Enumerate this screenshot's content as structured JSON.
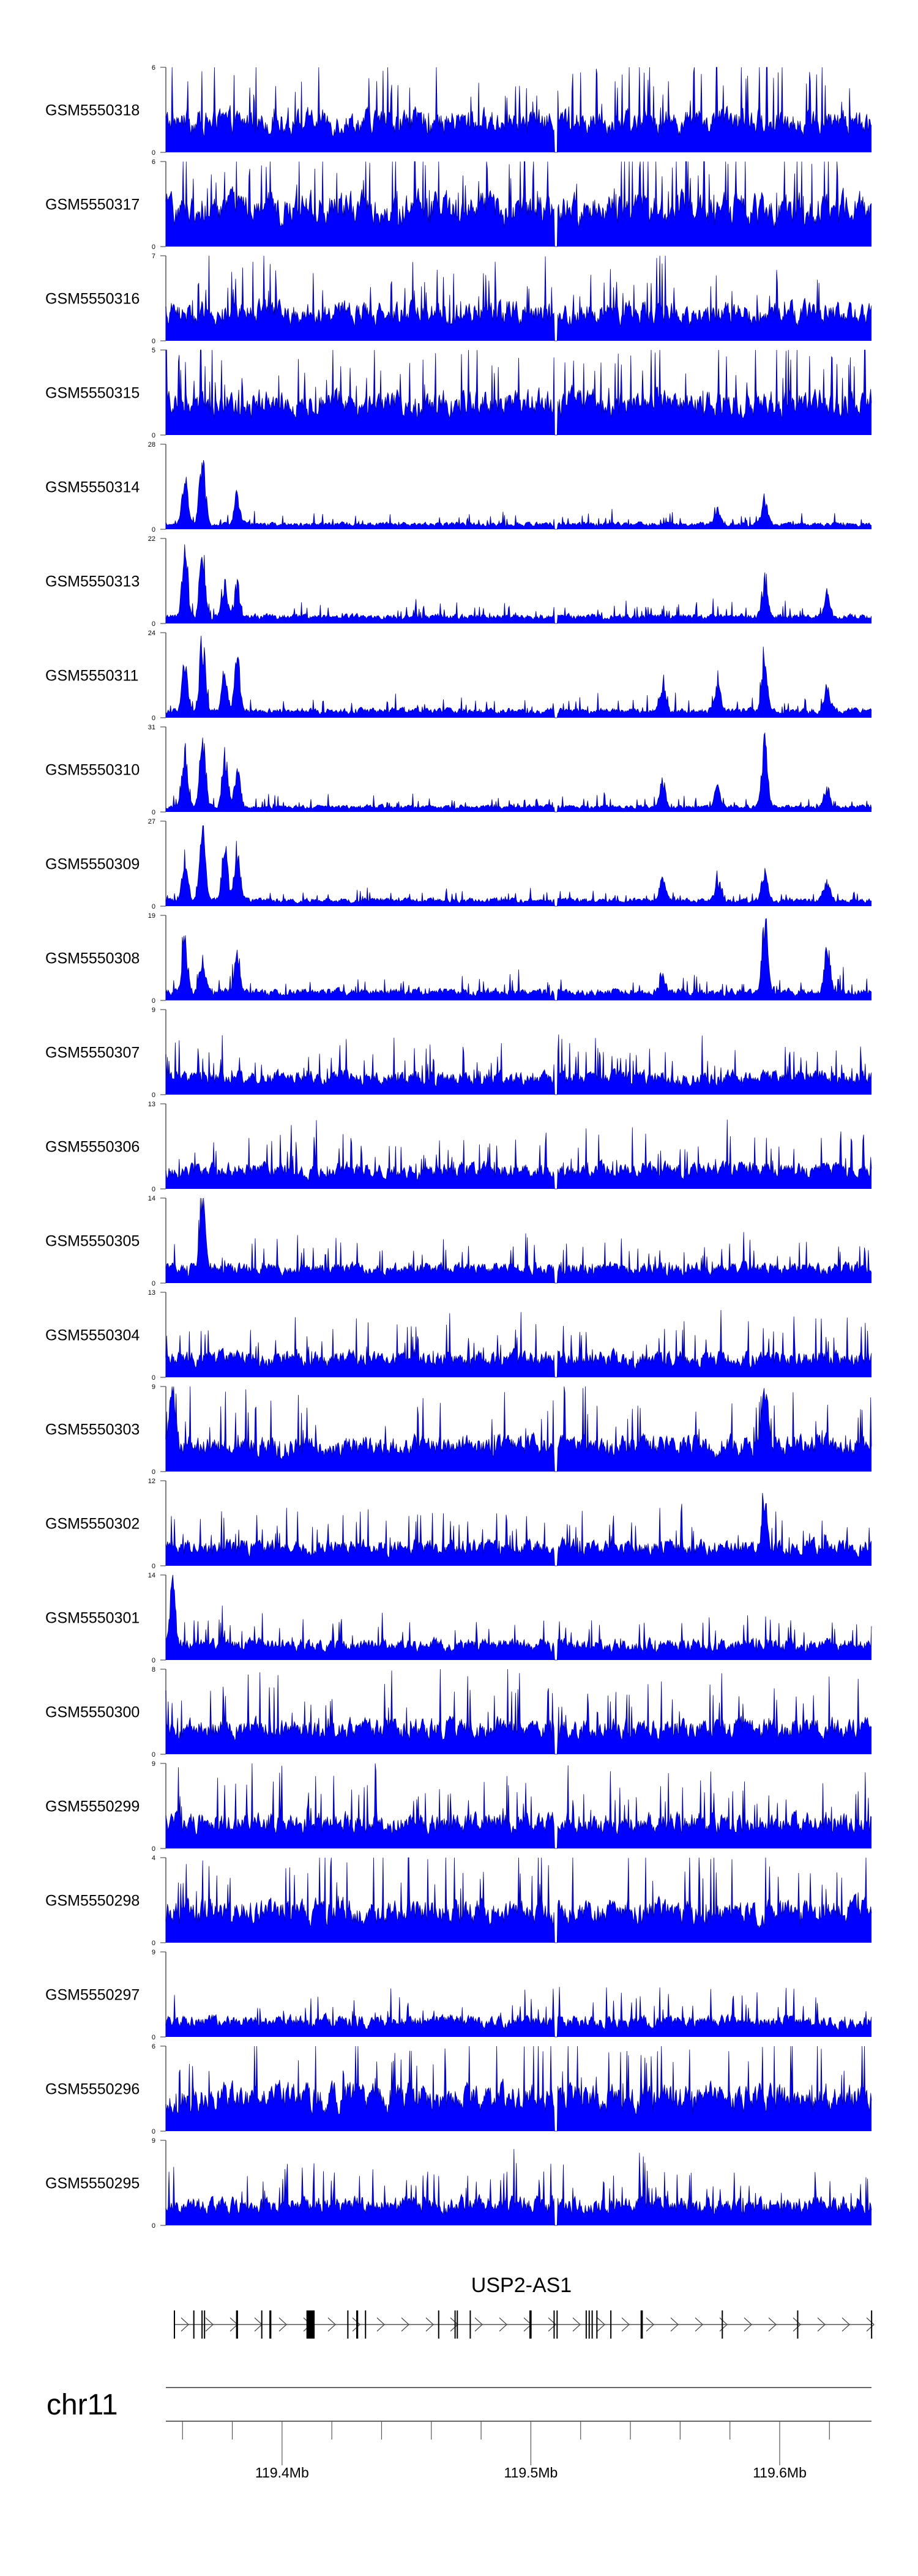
{
  "chart_data": {
    "type": "area",
    "title": "",
    "chromosome": "chr11",
    "xlim_mb": [
      119.3533,
      119.6369
    ],
    "x_ticks_mb": [
      119.36,
      119.38,
      119.4,
      119.42,
      119.44,
      119.46,
      119.48,
      119.5,
      119.52,
      119.54,
      119.56,
      119.58,
      119.6,
      119.62
    ],
    "x_tick_labels": [
      {
        "mb": 119.4,
        "label": "119.4Mb"
      },
      {
        "mb": 119.5,
        "label": "119.5Mb"
      },
      {
        "mb": 119.6,
        "label": "119.6Mb"
      }
    ],
    "colors": {
      "fill": "#0000ff",
      "line": "#00008b",
      "axis": "#808080",
      "gene": "#000000"
    },
    "coverage_gap_mb": [
      119.5093,
      119.5108
    ],
    "tracks": [
      {
        "name": "GSM5550318",
        "ymin": 0,
        "ymax": 6,
        "ymin_label": "0",
        "ymax_label": "6",
        "level": 0.36,
        "peaks": []
      },
      {
        "name": "GSM5550317",
        "ymin": 0,
        "ymax": 6,
        "ymin_label": "0",
        "ymax_label": "6",
        "level": 0.45,
        "peaks": []
      },
      {
        "name": "GSM5550316",
        "ymin": 0,
        "ymax": 7,
        "ymin_label": "0",
        "ymax_label": "7",
        "level": 0.33,
        "peaks": []
      },
      {
        "name": "GSM5550315",
        "ymin": 0,
        "ymax": 5,
        "ymin_label": "0",
        "ymax_label": "5",
        "level": 0.38,
        "peaks": []
      },
      {
        "name": "GSM5550314",
        "ymin": 0,
        "ymax": 28,
        "ymin_label": "0",
        "ymax_label": "28",
        "level": 0.06,
        "peaks": [
          [
            119.361,
            20
          ],
          [
            119.368,
            28
          ],
          [
            119.382,
            12
          ],
          [
            119.575,
            6
          ],
          [
            119.594,
            10
          ]
        ]
      },
      {
        "name": "GSM5550313",
        "ymin": 0,
        "ymax": 22,
        "ymin_label": "0",
        "ymax_label": "22",
        "level": 0.08,
        "peaks": [
          [
            119.361,
            22
          ],
          [
            119.368,
            19
          ],
          [
            119.377,
            10
          ],
          [
            119.382,
            10
          ],
          [
            119.594,
            12
          ],
          [
            119.619,
            8
          ]
        ]
      },
      {
        "name": "GSM5550311",
        "ymin": 0,
        "ymax": 24,
        "ymin_label": "0",
        "ymax_label": "24",
        "level": 0.08,
        "peaks": [
          [
            119.361,
            16
          ],
          [
            119.368,
            24
          ],
          [
            119.377,
            14
          ],
          [
            119.382,
            18
          ],
          [
            119.553,
            8
          ],
          [
            119.575,
            10
          ],
          [
            119.594,
            17
          ],
          [
            119.619,
            9
          ]
        ]
      },
      {
        "name": "GSM5550310",
        "ymin": 0,
        "ymax": 31,
        "ymin_label": "0",
        "ymax_label": "31",
        "level": 0.06,
        "peaks": [
          [
            119.361,
            25
          ],
          [
            119.368,
            31
          ],
          [
            119.377,
            23
          ],
          [
            119.382,
            17
          ],
          [
            119.553,
            12
          ],
          [
            119.575,
            9
          ],
          [
            119.594,
            28
          ],
          [
            119.619,
            9
          ]
        ]
      },
      {
        "name": "GSM5550309",
        "ymin": 0,
        "ymax": 27,
        "ymin_label": "0",
        "ymax_label": "27",
        "level": 0.07,
        "peaks": [
          [
            119.361,
            18
          ],
          [
            119.368,
            27
          ],
          [
            119.377,
            18
          ],
          [
            119.382,
            20
          ],
          [
            119.553,
            10
          ],
          [
            119.575,
            7
          ],
          [
            119.594,
            11
          ],
          [
            119.619,
            7
          ]
        ]
      },
      {
        "name": "GSM5550308",
        "ymin": 0,
        "ymax": 19,
        "ymin_label": "0",
        "ymax_label": "19",
        "level": 0.1,
        "peaks": [
          [
            119.361,
            14
          ],
          [
            119.368,
            9
          ],
          [
            119.382,
            11
          ],
          [
            119.553,
            5
          ],
          [
            119.594,
            19
          ],
          [
            119.619,
            12
          ]
        ]
      },
      {
        "name": "GSM5550307",
        "ymin": 0,
        "ymax": 9,
        "ymin_label": "0",
        "ymax_label": "9",
        "level": 0.2,
        "peaks": []
      },
      {
        "name": "GSM5550306",
        "ymin": 0,
        "ymax": 13,
        "ymin_label": "0",
        "ymax_label": "13",
        "level": 0.22,
        "peaks": []
      },
      {
        "name": "GSM5550305",
        "ymin": 0,
        "ymax": 14,
        "ymin_label": "0",
        "ymax_label": "14",
        "level": 0.17,
        "peaks": [
          [
            119.368,
            14
          ]
        ]
      },
      {
        "name": "GSM5550304",
        "ymin": 0,
        "ymax": 13,
        "ymin_label": "0",
        "ymax_label": "13",
        "level": 0.22,
        "peaks": []
      },
      {
        "name": "GSM5550303",
        "ymin": 0,
        "ymax": 9,
        "ymin_label": "0",
        "ymax_label": "9",
        "level": 0.3,
        "peaks": [
          [
            119.356,
            8
          ],
          [
            119.594,
            8
          ]
        ]
      },
      {
        "name": "GSM5550302",
        "ymin": 0,
        "ymax": 12,
        "ymin_label": "0",
        "ymax_label": "12",
        "level": 0.22,
        "peaks": [
          [
            119.594,
            8
          ]
        ]
      },
      {
        "name": "GSM5550301",
        "ymin": 0,
        "ymax": 14,
        "ymin_label": "0",
        "ymax_label": "14",
        "level": 0.18,
        "peaks": [
          [
            119.356,
            12
          ]
        ]
      },
      {
        "name": "GSM5550300",
        "ymin": 0,
        "ymax": 8,
        "ymin_label": "0",
        "ymax_label": "8",
        "level": 0.3,
        "peaks": []
      },
      {
        "name": "GSM5550299",
        "ymin": 0,
        "ymax": 9,
        "ymin_label": "0",
        "ymax_label": "9",
        "level": 0.3,
        "peaks": []
      },
      {
        "name": "GSM5550298",
        "ymin": 0,
        "ymax": 4,
        "ymin_label": "0",
        "ymax_label": "4",
        "level": 0.36,
        "peaks": []
      },
      {
        "name": "GSM5550297",
        "ymin": 0,
        "ymax": 9,
        "ymin_label": "0",
        "ymax_label": "9",
        "level": 0.18,
        "peaks": []
      },
      {
        "name": "GSM5550296",
        "ymin": 0,
        "ymax": 6,
        "ymin_label": "0",
        "ymax_label": "6",
        "level": 0.4,
        "peaks": []
      },
      {
        "name": "GSM5550295",
        "ymin": 0,
        "ymax": 9,
        "ymin_label": "0",
        "ymax_label": "9",
        "level": 0.24,
        "peaks": []
      }
    ],
    "gene": {
      "name": "USP2-AS1",
      "strand": "+",
      "start_mb": 119.3565,
      "end_mb": 119.6369,
      "exons_mb": [
        [
          119.3565,
          0.0002
        ],
        [
          119.3643,
          0.0002
        ],
        [
          119.3676,
          0.0002
        ],
        [
          119.3686,
          0.0002
        ],
        [
          119.3815,
          0.0008
        ],
        [
          119.3916,
          0.0002
        ],
        [
          119.3949,
          0.0008
        ],
        [
          119.4098,
          0.0033
        ],
        [
          119.4262,
          0.0002
        ],
        [
          119.4298,
          0.0008
        ],
        [
          119.4333,
          0.0002
        ],
        [
          119.4627,
          0.0002
        ],
        [
          119.4693,
          0.0002
        ],
        [
          119.4702,
          0.0002
        ],
        [
          119.4754,
          0.0002
        ],
        [
          119.4994,
          0.0009
        ],
        [
          119.5091,
          0.0002
        ],
        [
          119.5103,
          0.0002
        ],
        [
          119.522,
          0.0002
        ],
        [
          119.5232,
          0.0002
        ],
        [
          119.5244,
          0.0002
        ],
        [
          119.5263,
          0.0002
        ],
        [
          119.5319,
          0.0002
        ],
        [
          119.5441,
          0.0009
        ],
        [
          119.5767,
          0.0002
        ],
        [
          119.607,
          0.0002
        ],
        [
          119.6367,
          0.0002
        ]
      ]
    }
  }
}
